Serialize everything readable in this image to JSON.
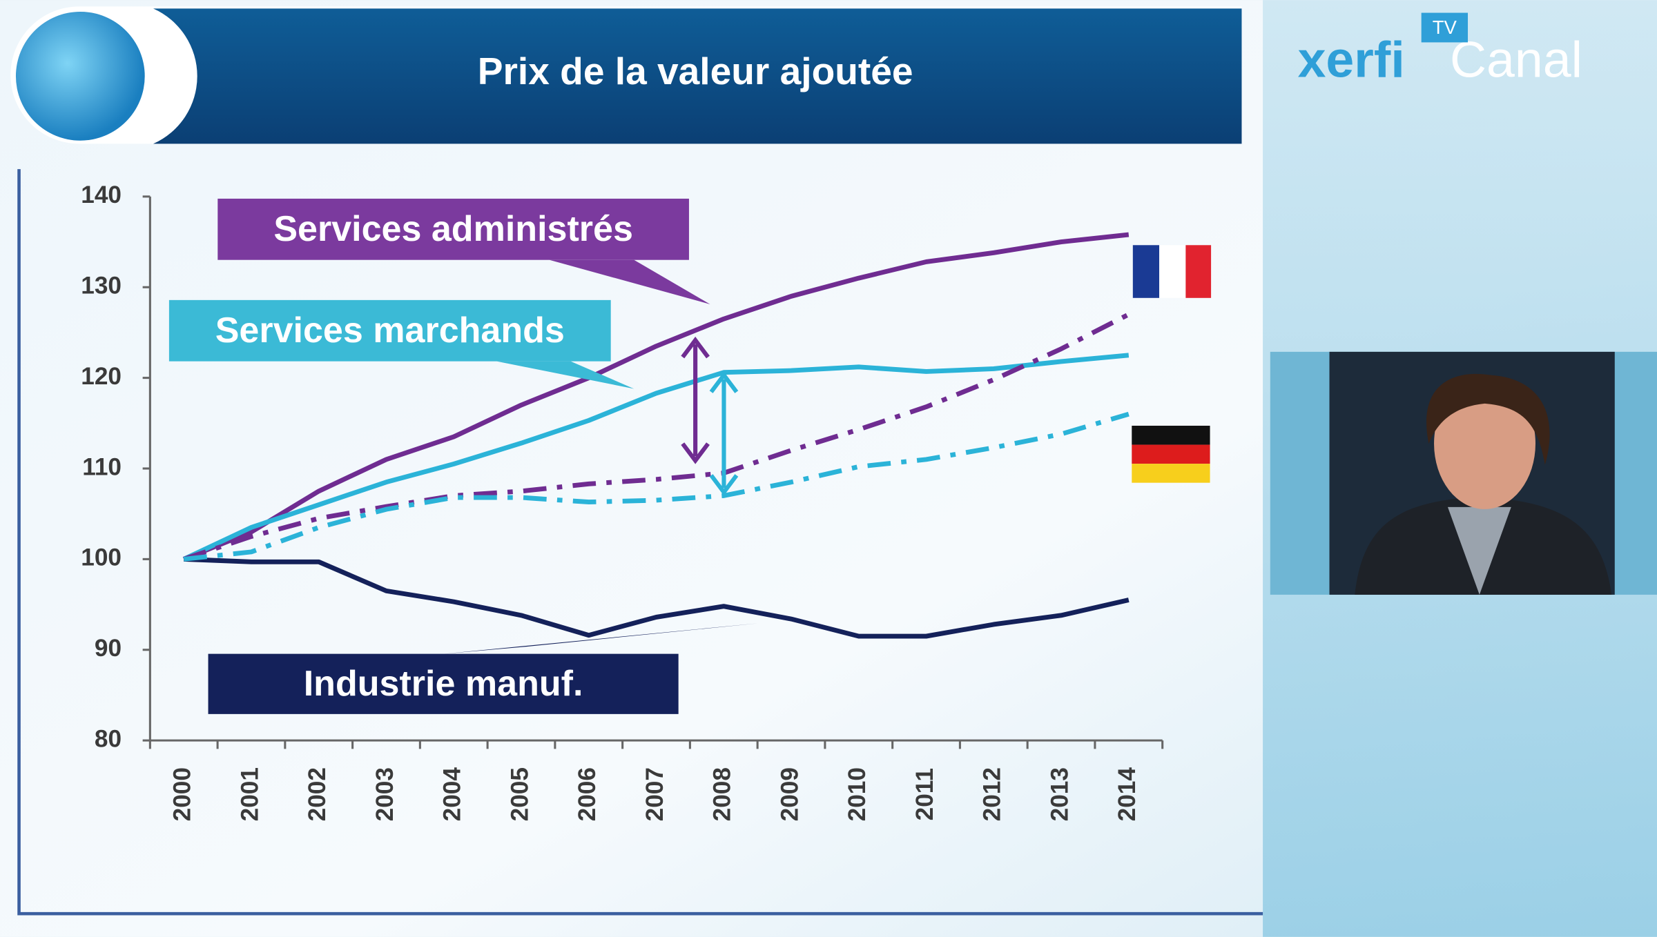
{
  "brand": {
    "name": "xerfi",
    "channel": "Canal",
    "badge": "TV"
  },
  "chart_data": {
    "type": "line",
    "title": "Prix de la valeur ajoutée",
    "categories": [
      "2000",
      "2001",
      "2002",
      "2003",
      "2004",
      "2005",
      "2006",
      "2007",
      "2008",
      "2009",
      "2010",
      "2011",
      "2012",
      "2013",
      "2014"
    ],
    "series": [
      {
        "color": "#6f2c91",
        "dash": "solid",
        "values": [
          100,
          103,
          107.5,
          111,
          113.5,
          117,
          120,
          123.5,
          126.5,
          129,
          131,
          132.8,
          133.8,
          135,
          135.8
        ]
      },
      {
        "color": "#2bb3d8",
        "dash": "solid",
        "values": [
          100,
          103.5,
          106,
          108.5,
          110.5,
          112.8,
          115.3,
          118.3,
          120.6,
          120.8,
          121.2,
          120.7,
          121,
          121.8,
          122.5
        ]
      },
      {
        "color": "#14215a",
        "dash": "solid",
        "values": [
          100,
          99.7,
          99.7,
          96.5,
          95.3,
          93.8,
          91.6,
          93.6,
          94.8,
          93.4,
          91.5,
          91.5,
          92.8,
          93.8,
          95.5
        ]
      },
      {
        "color": "#6f2c91",
        "dash": "dashdot",
        "values": [
          100,
          102.5,
          104.5,
          105.8,
          107,
          107.5,
          108.3,
          108.8,
          109.5,
          112,
          114.3,
          116.8,
          119.8,
          123.2,
          127
        ]
      },
      {
        "color": "#2bb3d8",
        "dash": "dashdot",
        "values": [
          100,
          100.8,
          103.5,
          105.5,
          106.8,
          106.8,
          106.3,
          106.5,
          107,
          108.5,
          110.2,
          111,
          112.3,
          113.8,
          116
        ]
      }
    ],
    "annotations": [
      {
        "text": "Services administrés",
        "color": "#7b3a9e"
      },
      {
        "text": "Services marchands",
        "color": "#3bbad6"
      },
      {
        "text": "Industrie manuf.",
        "color": "#14215a"
      }
    ],
    "ylim": [
      80,
      140
    ],
    "yticks": [
      80,
      90,
      100,
      110,
      120,
      130,
      140
    ],
    "grid": false
  }
}
